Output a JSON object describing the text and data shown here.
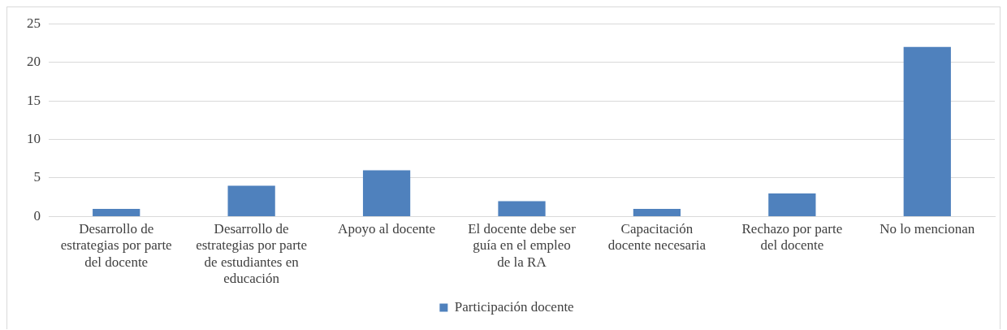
{
  "chart_data": {
    "type": "bar",
    "categories": [
      "Desarrollo de estrategias por parte del docente",
      "Desarrollo de estrategias por parte de estudiantes en educación",
      "Apoyo al docente",
      "El docente debe ser guía en el empleo de la RA",
      "Capacitación docente necesaria",
      "Rechazo por parte del docente",
      "No lo mencionan"
    ],
    "series": [
      {
        "name": "Participación docente",
        "color": "#4f81bd",
        "values": [
          1,
          4,
          6,
          2,
          1,
          3,
          22
        ]
      }
    ],
    "ylim": [
      0,
      25
    ],
    "yticks": [
      0,
      5,
      10,
      15,
      20,
      25
    ],
    "grid": "y",
    "legend": "bottom"
  }
}
